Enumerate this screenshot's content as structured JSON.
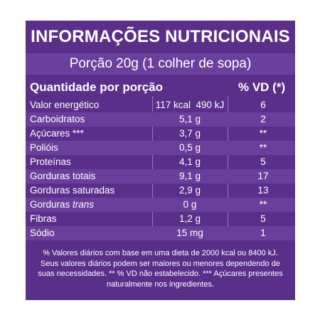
{
  "label": {
    "title": "INFORMAÇÕES NUTRICIONAIS",
    "portion": "Porção 20g (1 colher de sopa)",
    "header": {
      "quantity": "Quantidade por porção",
      "vd": "% VD (*)"
    },
    "rows": [
      {
        "name": "Valor energético",
        "amount": "117 kcal  490 kJ",
        "vd": "6"
      },
      {
        "name": "Carboidratos",
        "amount": "5,1 g",
        "vd": "2"
      },
      {
        "name": "Açúcares ***",
        "amount": "3,7 g",
        "vd": "**"
      },
      {
        "name": "Polióis",
        "amount": "0,5 g",
        "vd": "**"
      },
      {
        "name": "Proteínas",
        "amount": "4,1 g",
        "vd": "5"
      },
      {
        "name": "Gorduras totais",
        "amount": "9,1 g",
        "vd": "17"
      },
      {
        "name": "Gorduras saturadas",
        "amount": "2,9 g",
        "vd": "13"
      },
      {
        "name_prefix": "Gorduras ",
        "name_italic": "trans",
        "amount": "0 g",
        "vd": "**"
      },
      {
        "name": "Fibras",
        "amount": "1,2 g",
        "vd": "5"
      },
      {
        "name": "Sódio",
        "amount": "15 mg",
        "vd": "1"
      }
    ],
    "footnote": [
      "% Valores diários com base em uma dieta de 2000 kcal ou 8400 kJ.",
      "Seus valores diários podem ser maiores ou menores dependendo de",
      "suas necessidades. ** % VD não estabelecido. *** Açúcares presentes",
      "naturalmente nos ingredientes."
    ],
    "colors": {
      "background": "#5a2f8a",
      "shade": "#6a3f9b",
      "text": "#ffffff"
    }
  }
}
